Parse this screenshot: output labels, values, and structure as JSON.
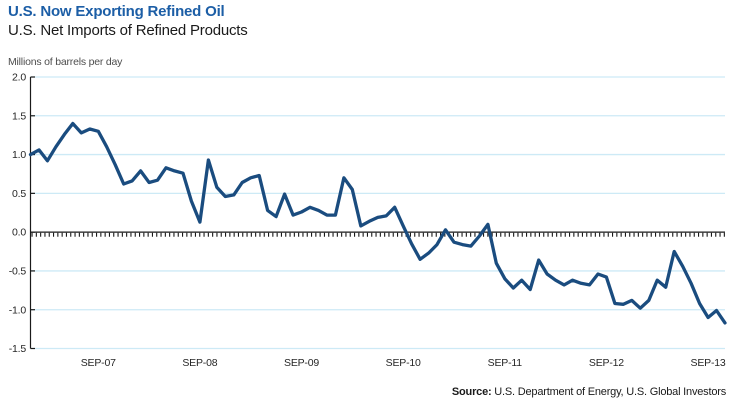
{
  "header": {
    "title": "U.S. Now Exporting Refined Oil",
    "subtitle": "U.S. Net Imports of Refined Products"
  },
  "footer": {
    "source_label": "Source:",
    "source_text": " U.S. Department of Energy, U.S. Global Investors"
  },
  "colors": {
    "title_blue": "#1C5EA6",
    "line_navy": "#1A4C7F",
    "gridline_blue": "#CDEAF6",
    "axis_black": "#1A1A1A",
    "tick_label": "#262626"
  },
  "chart_data": {
    "type": "line",
    "title": "U.S. Net Imports of Refined Products",
    "unit_note": "Millions of barrels per day",
    "ylabel": "Millions of barrels per day",
    "xlabel": "",
    "ylim": [
      -1.5,
      2.0
    ],
    "ytick_interval": 0.5,
    "yticks": [
      2.0,
      1.5,
      1.0,
      0.5,
      0.0,
      -0.5,
      -1.0,
      -1.5
    ],
    "grid": "horizontal",
    "legend_position": "none",
    "x_cadence": "monthly",
    "x_start_month": "JAN-2007",
    "x_end_month": "NOV-2013",
    "xticks": [
      {
        "label": "SEP-07",
        "index": 8
      },
      {
        "label": "SEP-08",
        "index": 20
      },
      {
        "label": "SEP-09",
        "index": 32
      },
      {
        "label": "SEP-10",
        "index": 44
      },
      {
        "label": "SEP-11",
        "index": 56
      },
      {
        "label": "SEP-12",
        "index": 68
      },
      {
        "label": "SEP-13",
        "index": 80
      }
    ],
    "series": [
      {
        "name": "U.S. net imports of refined products (millions of barrels per day)",
        "values": [
          1.0,
          1.06,
          0.92,
          1.1,
          1.26,
          1.4,
          1.28,
          1.33,
          1.3,
          1.1,
          0.87,
          0.62,
          0.66,
          0.79,
          0.64,
          0.67,
          0.83,
          0.79,
          0.76,
          0.4,
          0.13,
          0.93,
          0.58,
          0.46,
          0.48,
          0.64,
          0.7,
          0.73,
          0.28,
          0.2,
          0.49,
          0.22,
          0.26,
          0.32,
          0.28,
          0.22,
          0.22,
          0.7,
          0.55,
          0.08,
          0.14,
          0.19,
          0.21,
          0.32,
          0.08,
          -0.15,
          -0.35,
          -0.27,
          -0.16,
          0.03,
          -0.13,
          -0.16,
          -0.18,
          -0.05,
          0.1,
          -0.4,
          -0.6,
          -0.72,
          -0.62,
          -0.74,
          -0.36,
          -0.54,
          -0.62,
          -0.68,
          -0.62,
          -0.66,
          -0.68,
          -0.54,
          -0.58,
          -0.92,
          -0.93,
          -0.88,
          -0.98,
          -0.88,
          -0.62,
          -0.71,
          -0.25,
          -0.44,
          -0.66,
          -0.92,
          -1.1,
          -1.01,
          -1.17
        ]
      }
    ]
  }
}
